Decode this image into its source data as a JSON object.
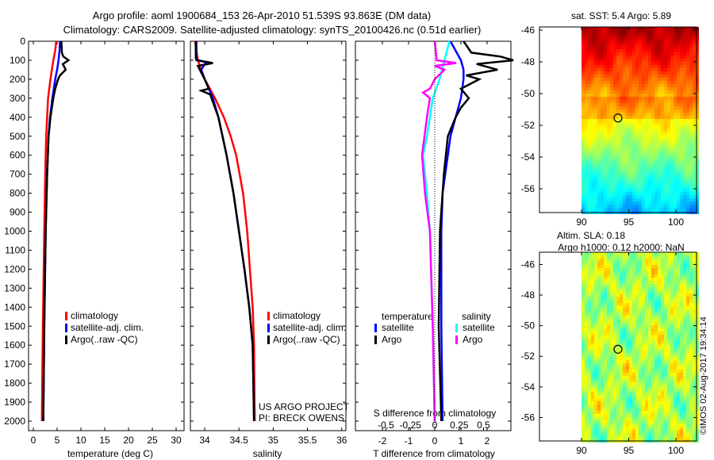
{
  "title": {
    "line1": "Argo profile: aoml 1900684_153 26-Apr-2010 51.539S 93.863E (DM data)",
    "line2": "Climatology: CARS2009. Satellite-adjusted climatology: synTS_20100426.nc (0.51d earlier)"
  },
  "colors": {
    "climatology": "#ff0000",
    "satellite": "#0000ff",
    "argo": "#000000",
    "sal_satellite": "#00ffff",
    "sal_argo": "#ff00ff"
  },
  "chart_data": [
    {
      "type": "line",
      "xlabel": "temperature (deg C)",
      "ylabel": "",
      "xlim": [
        -1,
        31.7
      ],
      "ylim": [
        2050,
        0
      ],
      "xticks": [
        0,
        5,
        10,
        15,
        20,
        25,
        30
      ],
      "yticks": [
        0,
        100,
        200,
        300,
        400,
        500,
        600,
        700,
        800,
        900,
        1000,
        1100,
        1200,
        1300,
        1400,
        1500,
        1600,
        1700,
        1800,
        1900,
        2000
      ],
      "legend": [
        "climatology",
        "satellite-adj. clim.",
        "Argo(..raw -QC)"
      ],
      "series": [
        {
          "name": "climatology",
          "color": "#ff0000",
          "depth": [
            0,
            50,
            100,
            150,
            200,
            300,
            400,
            500,
            700,
            1000,
            1500,
            2000
          ],
          "values": [
            4.8,
            4.6,
            4.2,
            3.9,
            3.6,
            3.1,
            2.9,
            2.7,
            2.5,
            2.3,
            2.0,
            1.8
          ]
        },
        {
          "name": "satellite-adj. clim.",
          "color": "#0000ff",
          "depth": [
            0,
            50,
            100,
            150,
            200,
            300,
            400,
            500,
            700,
            1000,
            1500,
            2000
          ],
          "values": [
            5.6,
            5.5,
            5.3,
            5.0,
            4.6,
            4.0,
            3.5,
            3.2,
            2.9,
            2.6,
            2.3,
            2.1
          ]
        },
        {
          "name": "Argo(..raw -QC)",
          "color": "#000000",
          "depth": [
            0,
            60,
            80,
            100,
            120,
            150,
            180,
            200,
            250,
            300,
            400,
            500,
            700,
            1000,
            1500,
            2000
          ],
          "values": [
            5.9,
            6.0,
            6.3,
            7.4,
            6.2,
            6.8,
            5.6,
            5.2,
            4.6,
            4.2,
            3.6,
            3.2,
            2.9,
            2.6,
            2.3,
            2.1
          ]
        }
      ]
    },
    {
      "type": "line",
      "xlabel": "salinity",
      "xlim": [
        33.8,
        36.1
      ],
      "ylim": [
        2050,
        0
      ],
      "xticks": [
        34,
        34.5,
        35,
        35.5,
        36
      ],
      "legend": [
        "climatology",
        "satellite-adj. clim.",
        "Argo(..raw -QC)"
      ],
      "series": [
        {
          "name": "climatology",
          "color": "#ff0000",
          "depth": [
            0,
            100,
            200,
            300,
            400,
            500,
            600,
            800,
            1000,
            1200,
            1400,
            1600,
            2000
          ],
          "values": [
            33.86,
            33.9,
            34.0,
            34.15,
            34.28,
            34.38,
            34.46,
            34.56,
            34.62,
            34.66,
            34.7,
            34.72,
            34.73
          ]
        },
        {
          "name": "satellite-adj. clim.",
          "color": "#0000ff",
          "depth": [
            0,
            100,
            110,
            150,
            200,
            300,
            400,
            500,
            600,
            800,
            1000,
            1200,
            1400,
            1600,
            2000
          ],
          "values": [
            33.88,
            33.88,
            34.02,
            33.95,
            34.0,
            34.12,
            34.2,
            34.26,
            34.32,
            34.42,
            34.5,
            34.58,
            34.65,
            34.7,
            34.72
          ]
        },
        {
          "name": "Argo(..raw -QC)",
          "color": "#000000",
          "depth": [
            0,
            90,
            100,
            115,
            130,
            200,
            250,
            260,
            280,
            300,
            400,
            500,
            600,
            800,
            1000,
            1200,
            1400,
            1600,
            2000
          ],
          "values": [
            33.87,
            33.87,
            33.9,
            34.12,
            33.9,
            34.0,
            34.06,
            33.95,
            34.08,
            34.1,
            34.2,
            34.26,
            34.32,
            34.42,
            34.5,
            34.58,
            34.65,
            34.7,
            34.72
          ]
        }
      ],
      "annotations": [
        "US ARGO PROJECT",
        "PI: BRECK OWENS"
      ]
    },
    {
      "type": "line",
      "xlabel": "T difference from climatology",
      "xlabel2": "S difference from climatology",
      "xlim": [
        -3,
        3
      ],
      "xlim_s": [
        -0.8,
        0.8
      ],
      "ylim": [
        2050,
        0
      ],
      "xticks": [
        -2,
        -1,
        0,
        1,
        2
      ],
      "xticks_s": [
        "-0.5",
        "-0.25",
        "0",
        "0.25",
        "0.5"
      ],
      "xticks_s_values": [
        -0.5,
        -0.25,
        0,
        0.25,
        0.5
      ],
      "legend": {
        "temperature_title": "temperature",
        "salinity_title": "salinity",
        "items": [
          "satellite",
          "Argo",
          "satellite",
          "Argo"
        ]
      },
      "series": [
        {
          "name": "T satellite",
          "unit": "T",
          "color": "#0000ff",
          "depth": [
            0,
            50,
            100,
            150,
            200,
            300,
            400,
            500,
            600,
            800,
            1000,
            1500,
            2000
          ],
          "values": [
            0.6,
            0.8,
            1.0,
            1.1,
            1.1,
            1.0,
            0.8,
            0.6,
            0.5,
            0.3,
            0.25,
            0.25,
            0.3
          ]
        },
        {
          "name": "T Argo",
          "unit": "T",
          "color": "#000000",
          "depth": [
            0,
            60,
            80,
            100,
            120,
            150,
            180,
            200,
            250,
            300,
            350,
            400,
            500,
            700,
            1000,
            1500,
            2000
          ],
          "values": [
            1.1,
            1.4,
            2.5,
            3.0,
            1.6,
            2.4,
            1.2,
            1.7,
            1.0,
            1.3,
            1.0,
            0.8,
            0.5,
            0.35,
            0.2,
            0.15,
            0.25
          ]
        },
        {
          "name": "S satellite",
          "unit": "S",
          "color": "#00ffff",
          "depth": [
            0,
            100,
            200,
            300,
            400,
            500,
            600,
            800,
            1000,
            1500,
            2000
          ],
          "values": [
            0.15,
            0.1,
            0.05,
            -0.02,
            -0.05,
            -0.08,
            -0.12,
            -0.08,
            -0.05,
            -0.02,
            0.0
          ]
        },
        {
          "name": "S Argo",
          "unit": "S",
          "color": "#ff00ff",
          "depth": [
            0,
            100,
            115,
            130,
            150,
            200,
            250,
            270,
            300,
            400,
            600,
            800,
            1000,
            1500,
            2000
          ],
          "values": [
            0.0,
            0.02,
            0.22,
            0.0,
            0.1,
            0.0,
            -0.05,
            -0.12,
            -0.05,
            -0.08,
            -0.13,
            -0.1,
            -0.05,
            -0.02,
            0.0
          ]
        }
      ]
    },
    {
      "type": "heatmap",
      "title": "sat. SST: 5.4  Argo: 5.89",
      "xlim": [
        85.5,
        102.2
      ],
      "ylim": [
        -57.5,
        -45.8
      ],
      "xticks": [
        90,
        95,
        100
      ],
      "yticks": [
        -46,
        -48,
        -50,
        -52,
        -54,
        -56
      ],
      "marker": {
        "lon": 93.863,
        "lat": -51.539
      }
    },
    {
      "type": "heatmap",
      "title": "Altim. SLA: 0.18",
      "subtitle": "Argo h1000: 0.12 h2000: NaN",
      "xlim": [
        85.5,
        102.2
      ],
      "ylim": [
        -57.5,
        -45.2
      ],
      "xticks": [
        90,
        95,
        100
      ],
      "yticks": [
        -46,
        -48,
        -50,
        -52,
        -54,
        -56
      ],
      "marker": {
        "lon": 93.863,
        "lat": -51.539
      }
    }
  ],
  "footer": {
    "credit": "©IMOS 02-Aug-2017 19:34:14"
  }
}
